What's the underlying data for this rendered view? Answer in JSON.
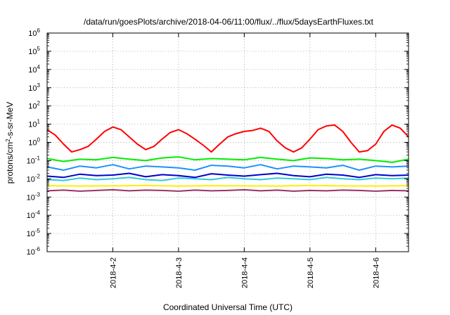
{
  "chart_data": {
    "type": "line",
    "title": "/data/run/goesPlots/archive/2018-04-06/11:00/flux/../flux/5daysEarthFluxes.txt",
    "xlabel": "Coordinated Universal Time (UTC)",
    "ylabel_parts": {
      "base": "protons/cm",
      "sup": "2",
      "rest": "-s-sr-MeV"
    },
    "y_scale": "log",
    "ylim": [
      1e-06,
      1000000.0
    ],
    "xlim": [
      "2018-04-01 00:00",
      "2018-04-06 12:00"
    ],
    "x_ticks": [
      {
        "date": "2018-04-02 00:00",
        "label": "2018-4-2"
      },
      {
        "date": "2018-04-03 00:00",
        "label": "2018-4-3"
      },
      {
        "date": "2018-04-04 00:00",
        "label": "2018-4-4"
      },
      {
        "date": "2018-04-05 00:00",
        "label": "2018-4-5"
      },
      {
        "date": "2018-04-06 00:00",
        "label": "2018-4-6"
      }
    ],
    "y_ticks": [
      {
        "value": 1e-06,
        "mant": "10",
        "exp": "-6"
      },
      {
        "value": 1e-05,
        "mant": "10",
        "exp": "-5"
      },
      {
        "value": 0.0001,
        "mant": "10",
        "exp": "-4"
      },
      {
        "value": 0.001,
        "mant": "10",
        "exp": "-3"
      },
      {
        "value": 0.01,
        "mant": "10",
        "exp": "-2"
      },
      {
        "value": 0.1,
        "mant": "10",
        "exp": "-1"
      },
      {
        "value": 1,
        "mant": "10",
        "exp": "0"
      },
      {
        "value": 10,
        "mant": "10",
        "exp": "1"
      },
      {
        "value": 100,
        "mant": "10",
        "exp": "2"
      },
      {
        "value": 1000,
        "mant": "10",
        "exp": "3"
      },
      {
        "value": 10000,
        "mant": "10",
        "exp": "4"
      },
      {
        "value": 100000,
        "mant": "10",
        "exp": "5"
      },
      {
        "value": 1000000,
        "mant": "10",
        "exp": "6"
      }
    ],
    "grid": true,
    "legend": "none",
    "series": [
      {
        "color": "#ff0000",
        "x": [
          "2018-04-01 00:00",
          "2018-04-01 03:00",
          "2018-04-01 06:00",
          "2018-04-01 09:00",
          "2018-04-01 12:00",
          "2018-04-01 15:00",
          "2018-04-01 18:00",
          "2018-04-01 21:00",
          "2018-04-02 00:00",
          "2018-04-02 03:00",
          "2018-04-02 06:00",
          "2018-04-02 09:00",
          "2018-04-02 12:00",
          "2018-04-02 15:00",
          "2018-04-02 18:00",
          "2018-04-02 21:00",
          "2018-04-03 00:00",
          "2018-04-03 03:00",
          "2018-04-03 06:00",
          "2018-04-03 09:00",
          "2018-04-03 12:00",
          "2018-04-03 15:00",
          "2018-04-03 18:00",
          "2018-04-03 21:00",
          "2018-04-04 00:00",
          "2018-04-04 03:00",
          "2018-04-04 06:00",
          "2018-04-04 09:00",
          "2018-04-04 12:00",
          "2018-04-04 15:00",
          "2018-04-04 18:00",
          "2018-04-04 21:00",
          "2018-04-05 00:00",
          "2018-04-05 03:00",
          "2018-04-05 06:00",
          "2018-04-05 09:00",
          "2018-04-05 12:00",
          "2018-04-05 15:00",
          "2018-04-05 18:00",
          "2018-04-05 21:00",
          "2018-04-06 00:00",
          "2018-04-06 03:00",
          "2018-04-06 06:00",
          "2018-04-06 09:00",
          "2018-04-06 12:00"
        ],
        "y": [
          5,
          2.5,
          0.8,
          0.3,
          0.4,
          0.6,
          1.5,
          4,
          7,
          5,
          2,
          0.8,
          0.4,
          0.6,
          1.5,
          3.5,
          5,
          3,
          1.5,
          0.7,
          0.3,
          0.8,
          2,
          3,
          4,
          4.5,
          6,
          4,
          1.2,
          0.5,
          0.3,
          0.5,
          1.5,
          5,
          8,
          9,
          4,
          1,
          0.3,
          0.35,
          0.8,
          4,
          9,
          6,
          2
        ]
      },
      {
        "color": "#00ee00",
        "x": [
          "2018-04-01 00:00",
          "2018-04-01 06:00",
          "2018-04-01 12:00",
          "2018-04-01 18:00",
          "2018-04-02 00:00",
          "2018-04-02 06:00",
          "2018-04-02 12:00",
          "2018-04-02 18:00",
          "2018-04-03 00:00",
          "2018-04-03 06:00",
          "2018-04-03 12:00",
          "2018-04-03 18:00",
          "2018-04-04 00:00",
          "2018-04-04 06:00",
          "2018-04-04 12:00",
          "2018-04-04 18:00",
          "2018-04-05 00:00",
          "2018-04-05 06:00",
          "2018-04-05 12:00",
          "2018-04-05 18:00",
          "2018-04-06 00:00",
          "2018-04-06 06:00",
          "2018-04-06 12:00"
        ],
        "y": [
          0.13,
          0.09,
          0.12,
          0.11,
          0.15,
          0.12,
          0.1,
          0.14,
          0.16,
          0.11,
          0.13,
          0.12,
          0.11,
          0.15,
          0.12,
          0.1,
          0.14,
          0.13,
          0.11,
          0.12,
          0.1,
          0.08,
          0.12
        ]
      },
      {
        "color": "#33ccdd",
        "x": [
          "2018-04-01 00:00",
          "2018-04-01 06:00",
          "2018-04-01 12:00",
          "2018-04-01 18:00",
          "2018-04-02 00:00",
          "2018-04-02 06:00",
          "2018-04-02 12:00",
          "2018-04-02 18:00",
          "2018-04-03 00:00",
          "2018-04-03 06:00",
          "2018-04-03 12:00",
          "2018-04-03 18:00",
          "2018-04-04 00:00",
          "2018-04-04 06:00",
          "2018-04-04 12:00",
          "2018-04-04 18:00",
          "2018-04-05 00:00",
          "2018-04-05 06:00",
          "2018-04-05 12:00",
          "2018-04-05 18:00",
          "2018-04-06 00:00",
          "2018-04-06 06:00",
          "2018-04-06 12:00"
        ],
        "y": [
          0.009,
          0.008,
          0.011,
          0.009,
          0.01,
          0.012,
          0.009,
          0.008,
          0.011,
          0.01,
          0.009,
          0.012,
          0.01,
          0.009,
          0.011,
          0.01,
          0.009,
          0.012,
          0.01,
          0.009,
          0.011,
          0.01,
          0.011
        ]
      },
      {
        "color": "#1e90ff",
        "x": [
          "2018-04-01 00:00",
          "2018-04-01 06:00",
          "2018-04-01 12:00",
          "2018-04-01 18:00",
          "2018-04-02 00:00",
          "2018-04-02 06:00",
          "2018-04-02 12:00",
          "2018-04-02 18:00",
          "2018-04-03 00:00",
          "2018-04-03 06:00",
          "2018-04-03 12:00",
          "2018-04-03 18:00",
          "2018-04-04 00:00",
          "2018-04-04 06:00",
          "2018-04-04 12:00",
          "2018-04-04 18:00",
          "2018-04-05 00:00",
          "2018-04-05 06:00",
          "2018-04-05 12:00",
          "2018-04-05 18:00",
          "2018-04-06 00:00",
          "2018-04-06 06:00",
          "2018-04-06 12:00"
        ],
        "y": [
          0.045,
          0.03,
          0.05,
          0.04,
          0.06,
          0.035,
          0.05,
          0.045,
          0.04,
          0.03,
          0.055,
          0.05,
          0.04,
          0.06,
          0.035,
          0.05,
          0.045,
          0.04,
          0.055,
          0.03,
          0.05,
          0.045,
          0.05
        ]
      },
      {
        "color": "#0000cc",
        "x": [
          "2018-04-01 00:00",
          "2018-04-01 06:00",
          "2018-04-01 12:00",
          "2018-04-01 18:00",
          "2018-04-02 00:00",
          "2018-04-02 06:00",
          "2018-04-02 12:00",
          "2018-04-02 18:00",
          "2018-04-03 00:00",
          "2018-04-03 06:00",
          "2018-04-03 12:00",
          "2018-04-03 18:00",
          "2018-04-04 00:00",
          "2018-04-04 06:00",
          "2018-04-04 12:00",
          "2018-04-04 18:00",
          "2018-04-05 00:00",
          "2018-04-05 06:00",
          "2018-04-05 12:00",
          "2018-04-05 18:00",
          "2018-04-06 00:00",
          "2018-04-06 06:00",
          "2018-04-06 12:00"
        ],
        "y": [
          0.014,
          0.012,
          0.018,
          0.015,
          0.016,
          0.02,
          0.013,
          0.017,
          0.015,
          0.012,
          0.019,
          0.016,
          0.014,
          0.017,
          0.02,
          0.015,
          0.013,
          0.018,
          0.016,
          0.012,
          0.017,
          0.015,
          0.016
        ]
      },
      {
        "color": "#ffee00",
        "x": [
          "2018-04-01 00:00",
          "2018-04-01 12:00",
          "2018-04-02 00:00",
          "2018-04-02 12:00",
          "2018-04-03 00:00",
          "2018-04-03 12:00",
          "2018-04-04 00:00",
          "2018-04-04 12:00",
          "2018-04-05 00:00",
          "2018-04-05 12:00",
          "2018-04-06 00:00",
          "2018-04-06 12:00"
        ],
        "y": [
          0.0042,
          0.004,
          0.0041,
          0.0043,
          0.004,
          0.0042,
          0.0041,
          0.004,
          0.0043,
          0.0041,
          0.004,
          0.0042
        ]
      },
      {
        "color": "#993366",
        "x": [
          "2018-04-01 00:00",
          "2018-04-01 06:00",
          "2018-04-01 12:00",
          "2018-04-01 18:00",
          "2018-04-02 00:00",
          "2018-04-02 06:00",
          "2018-04-02 12:00",
          "2018-04-02 18:00",
          "2018-04-03 00:00",
          "2018-04-03 06:00",
          "2018-04-03 12:00",
          "2018-04-03 18:00",
          "2018-04-04 00:00",
          "2018-04-04 06:00",
          "2018-04-04 12:00",
          "2018-04-04 18:00",
          "2018-04-05 00:00",
          "2018-04-05 06:00",
          "2018-04-05 12:00",
          "2018-04-05 18:00",
          "2018-04-06 00:00",
          "2018-04-06 06:00",
          "2018-04-06 12:00"
        ],
        "y": [
          0.0022,
          0.0024,
          0.0021,
          0.0023,
          0.0025,
          0.0022,
          0.0024,
          0.0023,
          0.0021,
          0.0024,
          0.0022,
          0.0023,
          0.0025,
          0.0022,
          0.0024,
          0.0021,
          0.0023,
          0.0022,
          0.0024,
          0.0023,
          0.0021,
          0.0023,
          0.0022
        ]
      }
    ]
  }
}
